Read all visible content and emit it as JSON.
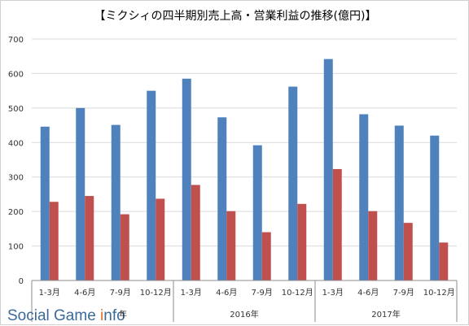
{
  "chart_data": {
    "type": "bar",
    "title": "【ミクシィの四半期別売上高・営業利益の推移(億円)】",
    "xlabel": "",
    "ylabel": "",
    "ylim": [
      0,
      700
    ],
    "yticks": [
      0,
      100,
      200,
      300,
      400,
      500,
      600,
      700
    ],
    "grid": true,
    "categories": [
      "1-3月",
      "4-6月",
      "7-9月",
      "10-12月",
      "1-3月",
      "4-6月",
      "7-9月",
      "10-12月",
      "1-3月",
      "4-6月",
      "7-9月",
      "10-12月"
    ],
    "year_groups": [
      {
        "label": "",
        "count": 4
      },
      {
        "label": "2016年",
        "count": 4
      },
      {
        "label": "2017年",
        "count": 4
      }
    ],
    "series": [
      {
        "color": "#4f81bd",
        "values": [
          446,
          500,
          451,
          550,
          585,
          473,
          392,
          562,
          642,
          482,
          449,
          420
        ]
      },
      {
        "color": "#c0504d",
        "values": [
          228,
          245,
          192,
          237,
          277,
          201,
          140,
          222,
          323,
          201,
          167,
          110
        ]
      }
    ]
  },
  "watermark": {
    "text_pre": "Social Game ",
    "text_post": "nfo",
    "partial_year": "年"
  }
}
